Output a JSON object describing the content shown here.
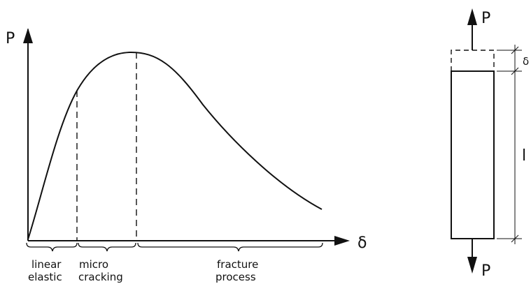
{
  "graph": {
    "y_axis_label": "P",
    "x_axis_label": "δ",
    "regions": [
      {
        "line1": "linear",
        "line2": "elastic"
      },
      {
        "line1": "micro",
        "line2": "cracking"
      },
      {
        "line1": "fracture",
        "line2": "process"
      }
    ]
  },
  "specimen": {
    "top_load_label": "P",
    "bottom_load_label": "P",
    "elongation_label": "δ",
    "length_label": "l"
  },
  "colors": {
    "ink": "#111111",
    "background": "#ffffff"
  }
}
